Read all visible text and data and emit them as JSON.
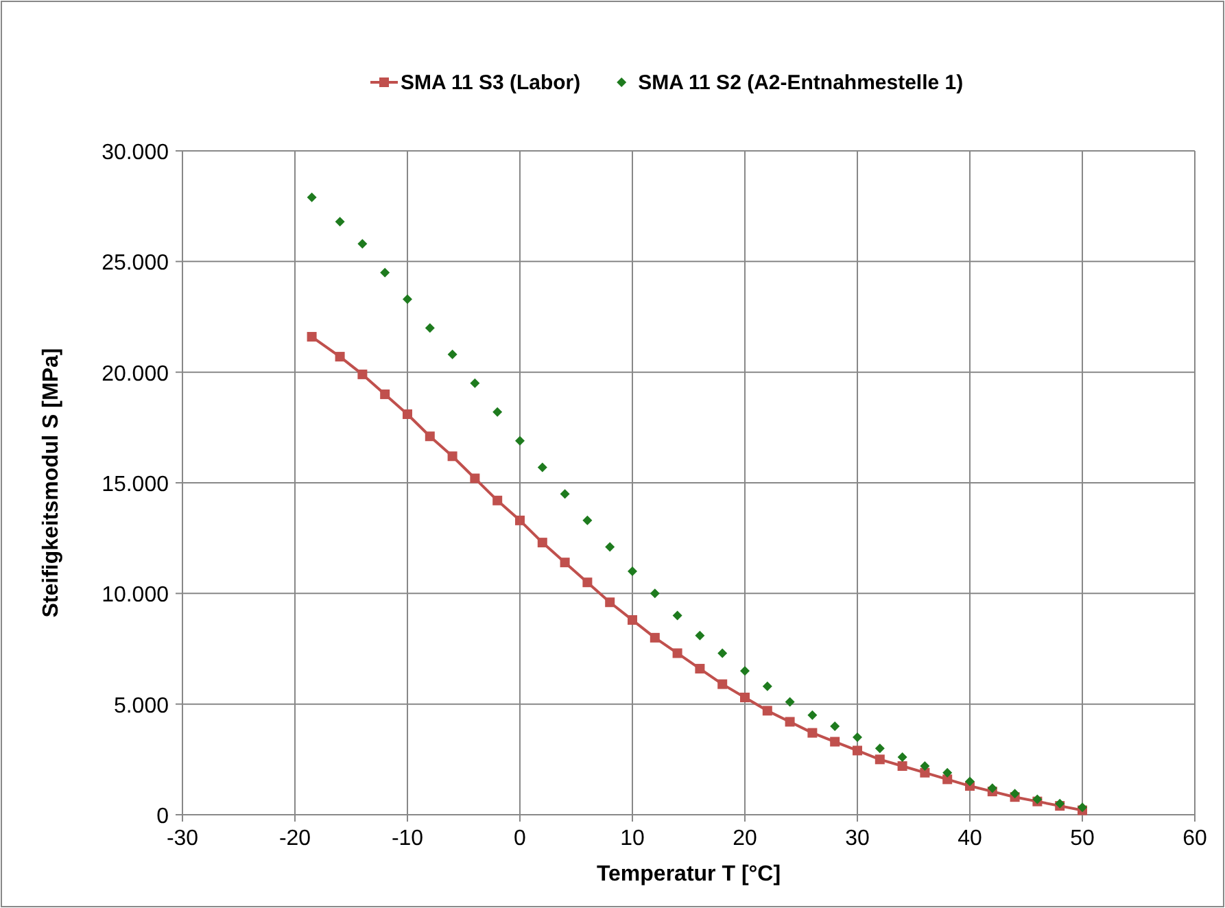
{
  "chart_data": {
    "type": "line",
    "xlabel": "Temperatur T [°C]",
    "ylabel": "Steifigkeitsmodul S [MPa]",
    "xlim": [
      -30,
      60
    ],
    "xticks": [
      -30,
      -20,
      -10,
      0,
      10,
      20,
      30,
      40,
      50,
      60
    ],
    "ylim": [
      0,
      30000
    ],
    "yticks": [
      {
        "value": 0,
        "label": "0"
      },
      {
        "value": 5000,
        "label": "5.000"
      },
      {
        "value": 10000,
        "label": "10.000"
      },
      {
        "value": 15000,
        "label": "15.000"
      },
      {
        "value": 20000,
        "label": "20.000"
      },
      {
        "value": 25000,
        "label": "25.000"
      },
      {
        "value": 30000,
        "label": "30.000"
      }
    ],
    "grid": true,
    "legend": "top",
    "x": [
      -18.5,
      -16,
      -14,
      -12,
      -10,
      -8,
      -6,
      -4,
      -2,
      0,
      2,
      4,
      6,
      8,
      10,
      12,
      14,
      16,
      18,
      20,
      22,
      24,
      26,
      28,
      30,
      32,
      34,
      36,
      38,
      40,
      42,
      44,
      46,
      48,
      50
    ],
    "series": [
      {
        "name": "SMA 11 S3 (Labor)",
        "color": "#c0504d",
        "marker": "square",
        "line_style": "solid",
        "values": [
          21600,
          20700,
          19900,
          19000,
          18100,
          17100,
          16200,
          15200,
          14200,
          13300,
          12300,
          11400,
          10500,
          9600,
          8800,
          8000,
          7300,
          6600,
          5900,
          5300,
          4700,
          4200,
          3700,
          3300,
          2900,
          2500,
          2200,
          1900,
          1600,
          1300,
          1050,
          800,
          600,
          400,
          200
        ]
      },
      {
        "name": "SMA 11 S2 (A2-Entnahmestelle 1)",
        "color": "#1e7b1e",
        "type": "scatter",
        "marker": "diamond",
        "values": [
          27900,
          26800,
          25800,
          24500,
          23300,
          22000,
          20800,
          19500,
          18200,
          16900,
          15700,
          14500,
          13300,
          12100,
          11000,
          10000,
          9000,
          8100,
          7300,
          6500,
          5800,
          5100,
          4500,
          4000,
          3500,
          3000,
          2600,
          2200,
          1900,
          1500,
          1200,
          950,
          700,
          500,
          330
        ]
      }
    ]
  }
}
